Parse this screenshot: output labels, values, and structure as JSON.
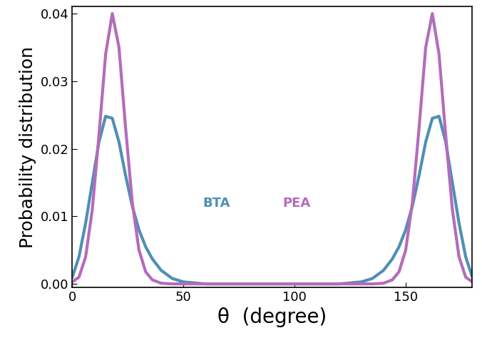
{
  "chart_data": {
    "type": "line",
    "x_label": "θ  (degree)",
    "y_label": "Probability distribution",
    "x": [
      0,
      3,
      6,
      9,
      12,
      15,
      18,
      21,
      24,
      27,
      30,
      33,
      36,
      40,
      45,
      50,
      60,
      90,
      120,
      130,
      135,
      140,
      144,
      147,
      150,
      153,
      156,
      159,
      162,
      165,
      168,
      171,
      174,
      177,
      180
    ],
    "series": [
      {
        "name": "BTA",
        "color": "#4f8fb5",
        "line_style": "solid",
        "values": [
          0.001,
          0.004,
          0.009,
          0.015,
          0.021,
          0.0248,
          0.0245,
          0.021,
          0.016,
          0.0115,
          0.008,
          0.0055,
          0.0037,
          0.002,
          0.0008,
          0.0003,
          0,
          0,
          0,
          0.0003,
          0.0008,
          0.002,
          0.0037,
          0.0055,
          0.008,
          0.0115,
          0.016,
          0.021,
          0.0245,
          0.0248,
          0.021,
          0.015,
          0.009,
          0.004,
          0.001
        ]
      },
      {
        "name": "PEA",
        "color": "#b56bbb",
        "line_style": "solid",
        "values": [
          0.0003,
          0.001,
          0.004,
          0.011,
          0.022,
          0.034,
          0.04,
          0.035,
          0.023,
          0.012,
          0.005,
          0.0018,
          0.0006,
          0.0001,
          0,
          0,
          0,
          0,
          0,
          0,
          0,
          0.0001,
          0.0006,
          0.0018,
          0.005,
          0.012,
          0.023,
          0.035,
          0.04,
          0.034,
          0.022,
          0.011,
          0.004,
          0.001,
          0.0003
        ]
      }
    ],
    "xlim": [
      0,
      180
    ],
    "xticks": [
      0,
      50,
      100,
      150
    ],
    "ylim": [
      -0.0005,
      0.041
    ],
    "yticks": [
      {
        "value": 0,
        "label": "0.00"
      },
      {
        "value": 0.01,
        "label": "0.01"
      },
      {
        "value": 0.02,
        "label": "0.02"
      },
      {
        "value": 0.03,
        "label": "0.03"
      },
      {
        "value": 0.04,
        "label": "0.04"
      }
    ],
    "grid": false
  }
}
